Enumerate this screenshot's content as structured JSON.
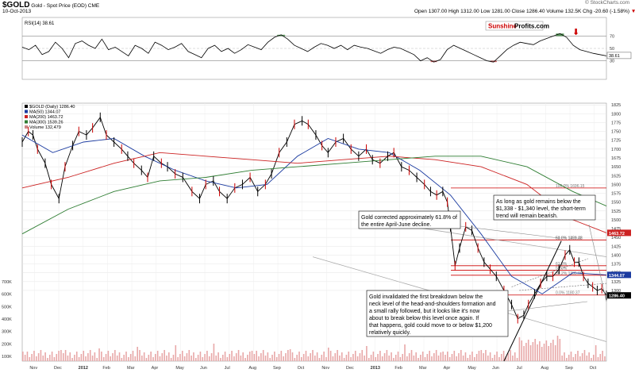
{
  "header": {
    "symbol": "$GOLD",
    "name": "Gold - Spot Price (EOD)",
    "exchange": "CME",
    "date": "10-Oct-2013",
    "copyright": "© StockCharts.com",
    "ohlc": "Open 1307.00  High 1312.00  Low 1281.00  Close 1286.40  Volume 132.5K  Chg -20.60 (-1.58%)",
    "ohlc_dir": "down-arrow"
  },
  "rsi": {
    "label": "RSI(14) 38.61",
    "levels": [
      70,
      50,
      30
    ],
    "current": "38.61",
    "overbought_color": "#2e7d32",
    "oversold_color": "#b03030"
  },
  "brand": {
    "part1": "Sunshine",
    "part2": "Profits.com",
    "color1": "#cc0000",
    "color2": "#000000"
  },
  "legend": [
    {
      "text": "$GOLD (Daily) 1286.40",
      "color": "#000000"
    },
    {
      "text": "MA(50) 1344.07",
      "color": "#1a3aa0"
    },
    {
      "text": "MA(200) 1463.72",
      "color": "#cc2222"
    },
    {
      "text": "MA(300) 1539.26",
      "color": "#2e7d32"
    },
    {
      "text": "Volume 132,479",
      "color": "#cc8888"
    }
  ],
  "annotations": [
    "Gold corrected approximately 61.8% of the entire April-June decline.",
    "As long as gold remains below the $1,338 - $1,340 level, the short-term trend will remain bearish.",
    "Gold invalidated the first breakdown below the neck level of the head-and-shoulders formation and a small rally followed, but it looks like it's now about to break below this level once again. If that happens, gold could move to or below $1,200 relatively quickly."
  ],
  "fib_labels": [
    {
      "text": "100.0% 1696.15",
      "price": 1590
    },
    {
      "text": "61.8%  1421.22",
      "price": 1443
    },
    {
      "text": "50.0%  1359.48",
      "price": 1443
    },
    {
      "text": "61.8%",
      "price": 1370
    },
    {
      "text": "50.0%",
      "price": 1357
    },
    {
      "text": "38.2%  1335.00",
      "price": 1343
    },
    {
      "text": "0.0%  1180.37",
      "price": 1287
    }
  ],
  "chart_data": {
    "type": "line",
    "title": "$GOLD Gold - Spot Price (EOD) CME",
    "x_ticks": [
      "Nov",
      "Dec",
      "2012",
      "Feb",
      "Mar",
      "Apr",
      "May",
      "Jun",
      "Jul",
      "Aug",
      "Sep",
      "Oct",
      "Nov",
      "Dec",
      "2013",
      "Feb",
      "Mar",
      "Apr",
      "May",
      "Jun",
      "Jul",
      "Aug",
      "Sep",
      "Oct"
    ],
    "y_ticks": [
      1300,
      1325,
      1350,
      1375,
      1400,
      1425,
      1450,
      1475,
      1500,
      1525,
      1550,
      1575,
      1600,
      1625,
      1650,
      1675,
      1700,
      1725,
      1750,
      1775,
      1800,
      1825
    ],
    "volume_ticks": [
      "700K",
      "600K",
      "500K",
      "400K",
      "300K",
      "200K",
      "100K"
    ],
    "price_boxes": [
      {
        "text": "1463.72",
        "price": 1463,
        "bg": "#cc2222"
      },
      {
        "text": "1344.07",
        "price": 1344,
        "bg": "#1a3aa0"
      },
      {
        "text": "1286.40",
        "price": 1286,
        "bg": "#000000"
      }
    ],
    "series": [
      {
        "name": "$GOLD (Daily) 1286.40",
        "x": [
          0,
          8,
          14,
          20,
          30,
          38,
          48,
          56,
          66,
          74,
          84,
          92,
          102,
          110,
          120,
          130,
          138,
          146,
          156,
          164,
          172,
          182,
          190,
          200,
          210,
          222,
          232,
          240,
          250,
          258,
          268,
          278,
          288,
          298,
          308,
          318,
          326,
          336,
          346,
          356,
          366,
          374,
          384,
          392,
          400,
          410,
          420,
          430,
          440,
          450,
          458,
          468,
          478,
          486,
          496,
          506,
          516,
          526,
          534,
          542,
          550,
          556,
          560,
          566,
          572,
          580,
          588,
          596,
          604,
          612,
          620,
          630,
          640,
          648,
          656,
          662,
          670,
          678,
          686,
          694,
          702,
          710,
          716,
          722,
          728,
          734,
          740,
          746,
          752,
          758,
          764
        ],
        "values": [
          1720,
          1750,
          1740,
          1700,
          1660,
          1600,
          1560,
          1650,
          1710,
          1750,
          1740,
          1760,
          1790,
          1740,
          1720,
          1700,
          1680,
          1660,
          1640,
          1620,
          1680,
          1660,
          1650,
          1630,
          1620,
          1580,
          1560,
          1600,
          1610,
          1580,
          1560,
          1590,
          1600,
          1620,
          1580,
          1600,
          1630,
          1690,
          1720,
          1770,
          1780,
          1770,
          1740,
          1710,
          1690,
          1720,
          1730,
          1700,
          1680,
          1700,
          1670,
          1660,
          1680,
          1690,
          1650,
          1640,
          1620,
          1600,
          1580,
          1570,
          1580,
          1550,
          1480,
          1370,
          1420,
          1480,
          1470,
          1420,
          1380,
          1360,
          1340,
          1300,
          1260,
          1220,
          1230,
          1260,
          1290,
          1320,
          1340,
          1340,
          1360,
          1400,
          1415,
          1380,
          1380,
          1340,
          1320,
          1310,
          1300,
          1305,
          1286
        ]
      },
      {
        "name": "MA(50) 1344.07",
        "x": [
          0,
          40,
          80,
          120,
          160,
          200,
          240,
          280,
          320,
          360,
          400,
          440,
          480,
          520,
          560,
          600,
          640,
          680,
          720,
          764
        ],
        "values": [
          1740,
          1690,
          1720,
          1730,
          1680,
          1640,
          1610,
          1590,
          1600,
          1680,
          1730,
          1700,
          1690,
          1640,
          1570,
          1460,
          1340,
          1290,
          1350,
          1344
        ]
      },
      {
        "name": "MA(200) 1463.72",
        "x": [
          0,
          60,
          120,
          180,
          240,
          300,
          360,
          420,
          480,
          540,
          600,
          660,
          720,
          764
        ],
        "values": [
          1590,
          1620,
          1660,
          1690,
          1680,
          1670,
          1660,
          1670,
          1680,
          1670,
          1650,
          1600,
          1500,
          1463
        ]
      },
      {
        "name": "MA(300) 1539.26",
        "x": [
          0,
          60,
          120,
          180,
          240,
          300,
          360,
          420,
          480,
          540,
          600,
          660,
          720,
          764
        ],
        "values": [
          1460,
          1530,
          1580,
          1610,
          1620,
          1640,
          1650,
          1660,
          1670,
          1680,
          1680,
          1650,
          1580,
          1539
        ]
      }
    ],
    "rsi_values": [
      52,
      48,
      55,
      40,
      45,
      60,
      50,
      35,
      58,
      62,
      55,
      50,
      65,
      48,
      52,
      45,
      38,
      55,
      50,
      42,
      60,
      55,
      48,
      52,
      58,
      45,
      40,
      35,
      50,
      55,
      45,
      50,
      42,
      48,
      56,
      52,
      48,
      60,
      68,
      72,
      65,
      55,
      50,
      45,
      52,
      58,
      55,
      50,
      55,
      48,
      55,
      52,
      50,
      46,
      42,
      48,
      52,
      50,
      45,
      40,
      30,
      35,
      28,
      32,
      48,
      55,
      50,
      45,
      40,
      35,
      30,
      28,
      38,
      48,
      55,
      60,
      58,
      56,
      62,
      66,
      70,
      74,
      68,
      55,
      48,
      45,
      42,
      40,
      38
    ]
  }
}
